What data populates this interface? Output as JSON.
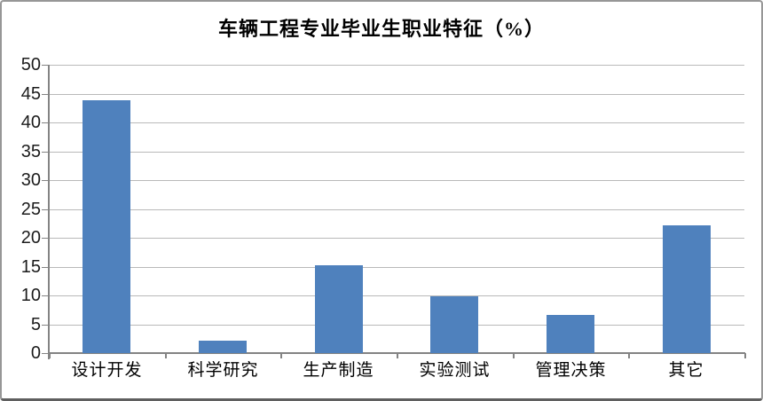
{
  "chart_data": {
    "type": "bar",
    "title": "车辆工程专业毕业生职业特征（%）",
    "categories": [
      "设计开发",
      "科学研究",
      "生产制造",
      "实验测试",
      "管理决策",
      "其它"
    ],
    "values": [
      43.9,
      2.2,
      15.3,
      9.8,
      6.6,
      22.2
    ],
    "xlabel": "",
    "ylabel": "",
    "ylim": [
      0,
      50
    ],
    "yticks": [
      0,
      5,
      10,
      15,
      20,
      25,
      30,
      35,
      40,
      45,
      50
    ],
    "legend": "none",
    "grid": "horizontal-only",
    "colors": {
      "bar": "#4F81BD",
      "gridline": "#b9b9b9",
      "axis": "#838383",
      "tick_label": "#1c1c1c",
      "title": "#000000",
      "frame_border": "#979797",
      "background": "#ffffff"
    }
  }
}
